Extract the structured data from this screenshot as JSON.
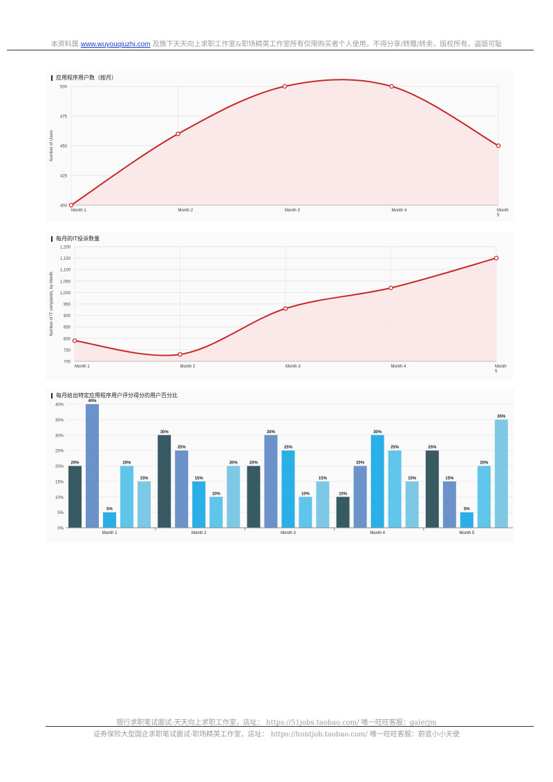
{
  "header": {
    "prefix": "本资料属",
    "link": "www.wuyouqiuzhi.com",
    "suffix": "及旗下天天向上求职工作室&职场精英工作室所有仅限购买者个人使用，不得分享/转赠/转卖，版权所有，盗版可耻"
  },
  "footer": {
    "line1_prefix": "银行求职笔试面试-天天向上求职工作室，店址：",
    "line1_link": "https://51jobs.taobao.com/",
    "line1_suffix": "唯一旺旺客服：galerjm",
    "line2_prefix": "证券保险大型国企求职笔试面试-职场精英工作室，店址：",
    "line2_link": "https://huntjob.taobao.com/",
    "line2_suffix": "唯一旺旺客服：蔚蓝小小天使"
  },
  "chart_data": [
    {
      "type": "line",
      "title": "应用程序用户数（按月）",
      "xlabel": "",
      "ylabel": "Number of Users",
      "categories": [
        "Month 1",
        "Month 2",
        "Month 3",
        "Month 4",
        "Month 5"
      ],
      "values": [
        400,
        460,
        500,
        500,
        450
      ],
      "yticks": [
        "400",
        "425",
        "450",
        "475",
        "500"
      ],
      "ylim": [
        400,
        500
      ],
      "line_color": "#c62828",
      "fill_color": "#fbe3e3"
    },
    {
      "type": "line",
      "title": "每月的IT投诉数量",
      "xlabel": "",
      "ylabel": "Number of IT complaints, by Month",
      "categories": [
        "Month 1",
        "Month 2",
        "Month 3",
        "Month 4",
        "Month 5"
      ],
      "values": [
        790,
        730,
        930,
        1020,
        1150
      ],
      "yticks": [
        "700",
        "750",
        "800",
        "850",
        "900",
        "950",
        "1,000",
        "1,050",
        "1,100",
        "1,150",
        "1,200"
      ],
      "ylim": [
        700,
        1200
      ],
      "line_color": "#c62828",
      "fill_color": "#fbe3e3"
    },
    {
      "type": "bar",
      "title": "每月给出特定应用程序用户评分得分的用户百分比",
      "categories": [
        "Month 1",
        "Month 2",
        "Month 3",
        "Month 4",
        "Month 5"
      ],
      "series": [
        {
          "values": [
            20,
            30,
            20,
            10,
            25
          ],
          "color": "#385a63"
        },
        {
          "values": [
            40,
            25,
            30,
            20,
            15
          ],
          "color": "#6b93c9"
        },
        {
          "values": [
            5,
            15,
            25,
            30,
            5
          ],
          "color": "#2ab0e6"
        },
        {
          "values": [
            20,
            10,
            10,
            25,
            20
          ],
          "color": "#5fc5ea"
        },
        {
          "values": [
            15,
            20,
            15,
            15,
            35
          ],
          "color": "#7cc8e5"
        }
      ],
      "labels": [
        "20%",
        "40%",
        "5%",
        "20%",
        "15%",
        "30%",
        "25%",
        "15%",
        "10%",
        "20%",
        "20%",
        "30%",
        "25%",
        "10%",
        "15%",
        "10%",
        "20%",
        "30%",
        "25%",
        "15%",
        "25%",
        "15%",
        "5%",
        "20%",
        "35%"
      ],
      "yticks": [
        "0%",
        "5%",
        "10%",
        "15%",
        "20%",
        "25%",
        "30%",
        "35%",
        "40%"
      ],
      "ylim": [
        0,
        40
      ]
    }
  ]
}
